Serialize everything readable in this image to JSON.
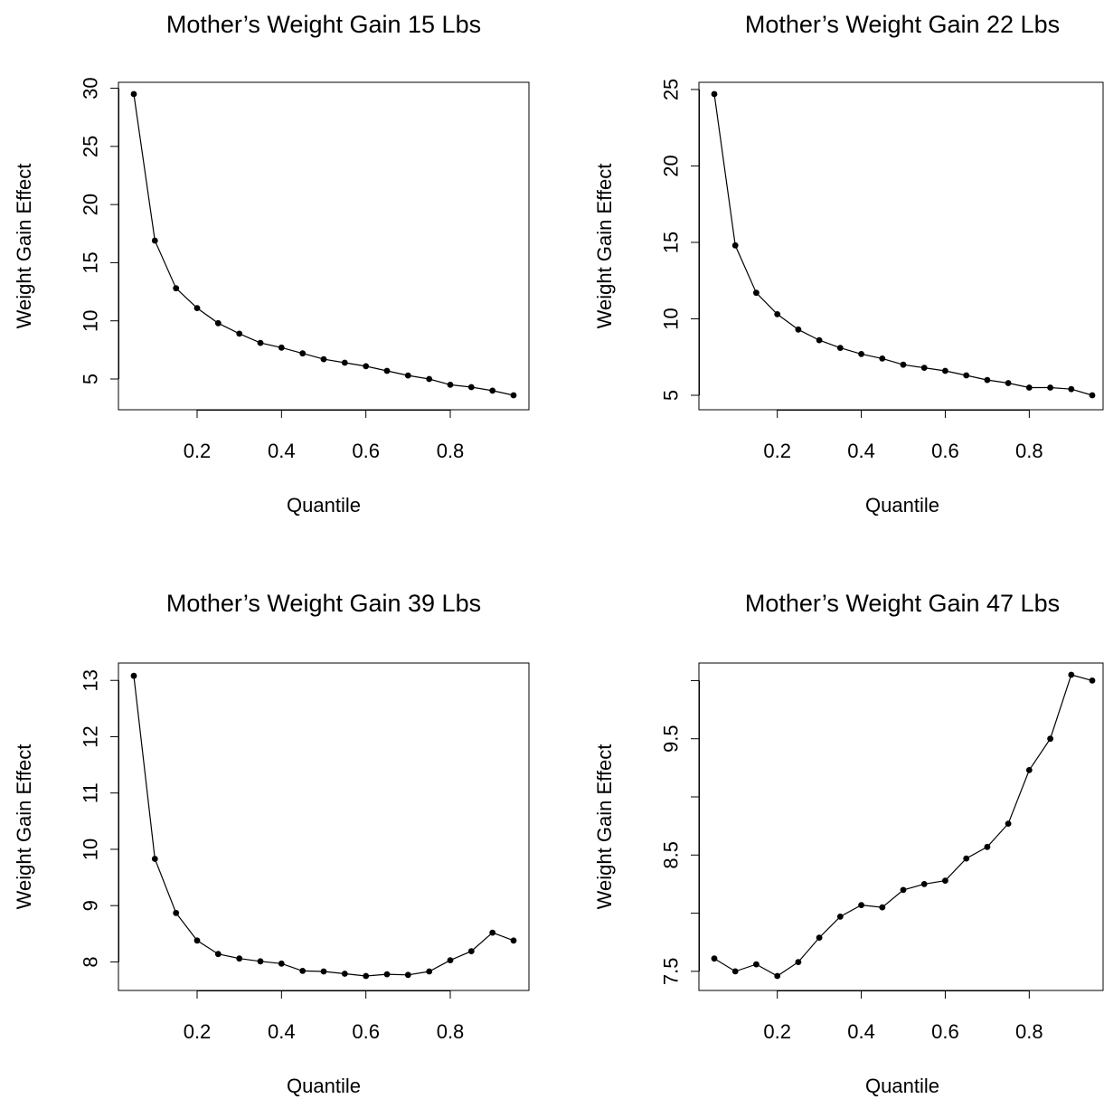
{
  "chart_data": [
    {
      "type": "line",
      "title": "Mother’s Weight Gain 15 Lbs",
      "xlabel": "Quantile",
      "ylabel": "Weight Gain Effect",
      "xlim": [
        0.05,
        0.95
      ],
      "ylim": [
        3.6,
        29.5
      ],
      "xticks": [
        0.2,
        0.4,
        0.6,
        0.8
      ],
      "xtick_labels": [
        "0.2",
        "0.4",
        "0.6",
        "0.8"
      ],
      "yticks": [
        5,
        10,
        15,
        20,
        25,
        30
      ],
      "ytick_labels": [
        "5",
        "10",
        "15",
        "20",
        "25",
        "30"
      ],
      "grid": false,
      "x": [
        0.05,
        0.1,
        0.15,
        0.2,
        0.25,
        0.3,
        0.35,
        0.4,
        0.45,
        0.5,
        0.55,
        0.6,
        0.65,
        0.7,
        0.75,
        0.8,
        0.85,
        0.9,
        0.95
      ],
      "values": [
        29.5,
        16.9,
        12.8,
        11.1,
        9.8,
        8.9,
        8.1,
        7.7,
        7.2,
        6.7,
        6.4,
        6.1,
        5.7,
        5.3,
        5.0,
        4.5,
        4.3,
        4.0,
        3.6
      ]
    },
    {
      "type": "line",
      "title": "Mother’s Weight Gain 22 Lbs",
      "xlabel": "Quantile",
      "ylabel": "Weight Gain Effect",
      "xlim": [
        0.05,
        0.95
      ],
      "ylim": [
        5.0,
        24.7
      ],
      "xticks": [
        0.2,
        0.4,
        0.6,
        0.8
      ],
      "xtick_labels": [
        "0.2",
        "0.4",
        "0.6",
        "0.8"
      ],
      "yticks": [
        5,
        10,
        15,
        20,
        25
      ],
      "ytick_labels": [
        "5",
        "10",
        "15",
        "20",
        "25"
      ],
      "grid": false,
      "x": [
        0.05,
        0.1,
        0.15,
        0.2,
        0.25,
        0.3,
        0.35,
        0.4,
        0.45,
        0.5,
        0.55,
        0.6,
        0.65,
        0.7,
        0.75,
        0.8,
        0.85,
        0.9,
        0.95
      ],
      "values": [
        24.7,
        14.8,
        11.7,
        10.3,
        9.3,
        8.6,
        8.1,
        7.7,
        7.4,
        7.0,
        6.8,
        6.6,
        6.3,
        6.0,
        5.8,
        5.5,
        5.5,
        5.4,
        5.0
      ]
    },
    {
      "type": "line",
      "title": "Mother’s Weight Gain 39 Lbs",
      "xlabel": "Quantile",
      "ylabel": "Weight Gain Effect",
      "xlim": [
        0.05,
        0.95
      ],
      "ylim": [
        7.75,
        13.1
      ],
      "xticks": [
        0.2,
        0.4,
        0.6,
        0.8
      ],
      "xtick_labels": [
        "0.2",
        "0.4",
        "0.6",
        "0.8"
      ],
      "yticks": [
        8,
        9,
        10,
        11,
        12,
        13
      ],
      "ytick_labels": [
        "8",
        "9",
        "10",
        "11",
        "12",
        "13"
      ],
      "grid": false,
      "x": [
        0.05,
        0.1,
        0.15,
        0.2,
        0.25,
        0.3,
        0.35,
        0.4,
        0.45,
        0.5,
        0.55,
        0.6,
        0.65,
        0.7,
        0.75,
        0.8,
        0.85,
        0.9,
        0.95
      ],
      "values": [
        13.08,
        9.83,
        8.87,
        8.38,
        8.14,
        8.06,
        8.01,
        7.97,
        7.84,
        7.83,
        7.79,
        7.75,
        7.78,
        7.77,
        7.83,
        8.03,
        8.19,
        8.52,
        8.38
      ]
    },
    {
      "type": "line",
      "title": "Mother’s Weight Gain 47 Lbs",
      "xlabel": "Quantile",
      "ylabel": "Weight Gain Effect",
      "xlim": [
        0.05,
        0.95
      ],
      "ylim": [
        7.46,
        10.05
      ],
      "xticks": [
        0.2,
        0.4,
        0.6,
        0.8
      ],
      "xtick_labels": [
        "0.2",
        "0.4",
        "0.6",
        "0.8"
      ],
      "yticks": [
        7.5,
        8.0,
        8.5,
        9.0,
        9.5,
        10.0
      ],
      "ytick_labels": [
        "7.5",
        "",
        "8.5",
        "",
        "9.5",
        ""
      ],
      "grid": false,
      "x": [
        0.05,
        0.1,
        0.15,
        0.2,
        0.25,
        0.3,
        0.35,
        0.4,
        0.45,
        0.5,
        0.55,
        0.6,
        0.65,
        0.7,
        0.75,
        0.8,
        0.85,
        0.9,
        0.95
      ],
      "values": [
        7.61,
        7.5,
        7.56,
        7.46,
        7.58,
        7.79,
        7.97,
        8.07,
        8.05,
        8.2,
        8.25,
        8.28,
        8.47,
        8.57,
        8.77,
        9.23,
        9.5,
        10.05,
        10.0
      ]
    }
  ]
}
